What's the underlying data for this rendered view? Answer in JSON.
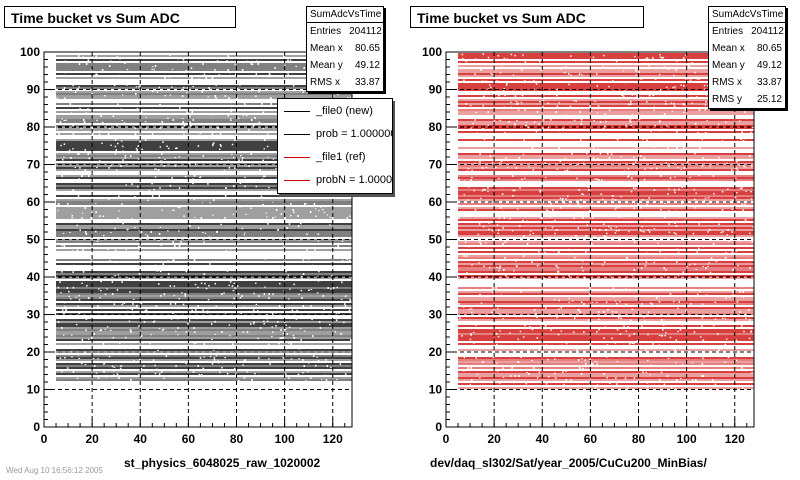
{
  "panels": [
    {
      "title": "Time bucket vs Sum ADC",
      "stats": {
        "name": "SumAdcVsTime",
        "rows": [
          {
            "label": "Entries",
            "value": "204112"
          },
          {
            "label": "Mean x",
            "value": "80.65"
          },
          {
            "label": "Mean y",
            "value": "49.12"
          },
          {
            "label": "RMS x",
            "value": "33.87"
          }
        ]
      },
      "xaxis_title": "st_physics_6048025_raw_1020002"
    },
    {
      "title": "Time bucket vs Sum ADC",
      "stats": {
        "name": "SumAdcVsTime",
        "rows": [
          {
            "label": "Entries",
            "value": "204112"
          },
          {
            "label": "Mean x",
            "value": "80.65"
          },
          {
            "label": "Mean y",
            "value": "49.12"
          },
          {
            "label": "RMS x",
            "value": "33.87"
          },
          {
            "label": "RMS y",
            "value": "25.12"
          }
        ]
      },
      "xaxis_title": "dev/daq_sl302/Sat/year_2005/CuCu200_MinBias/"
    }
  ],
  "legend": {
    "entries": [
      {
        "label": "_file0 (new)",
        "color": "#000000"
      },
      {
        "label": "prob = 1.000000",
        "color": "#000000"
      },
      {
        "label": "_file1 (ref)",
        "color": "#cc0000"
      },
      {
        "label": "probN = 1.000000",
        "color": "#cc0000"
      }
    ]
  },
  "stamp": "Wed Aug 10 16:56:12 2005",
  "chart_data": [
    {
      "type": "scatter",
      "title": "Time bucket vs Sum ADC",
      "xlabel": "st_physics_6048025_raw_1020002",
      "xlim": [
        0,
        128
      ],
      "ylim": [
        0,
        100
      ],
      "xticks": [
        0,
        20,
        40,
        60,
        80,
        100,
        120
      ],
      "yticks": [
        0,
        10,
        20,
        30,
        40,
        50,
        60,
        70,
        80,
        90,
        100
      ],
      "grid": true,
      "series": [
        {
          "name": "_file0 (new)",
          "color": "#000000",
          "x_range": [
            5,
            128
          ],
          "y_range": [
            10,
            100
          ]
        }
      ]
    },
    {
      "type": "scatter",
      "title": "Time bucket vs Sum ADC",
      "xlabel": "dev/daq_sl302/Sat/year_2005/CuCu200_MinBias/",
      "xlim": [
        0,
        128
      ],
      "ylim": [
        0,
        100
      ],
      "xticks": [
        0,
        20,
        40,
        60,
        80,
        100,
        120
      ],
      "yticks": [
        0,
        10,
        20,
        30,
        40,
        50,
        60,
        70,
        80,
        90,
        100
      ],
      "grid": true,
      "series": [
        {
          "name": "_file1 (ref)",
          "color": "#cc0000",
          "x_range": [
            5,
            128
          ],
          "y_range": [
            10,
            100
          ]
        }
      ]
    }
  ]
}
